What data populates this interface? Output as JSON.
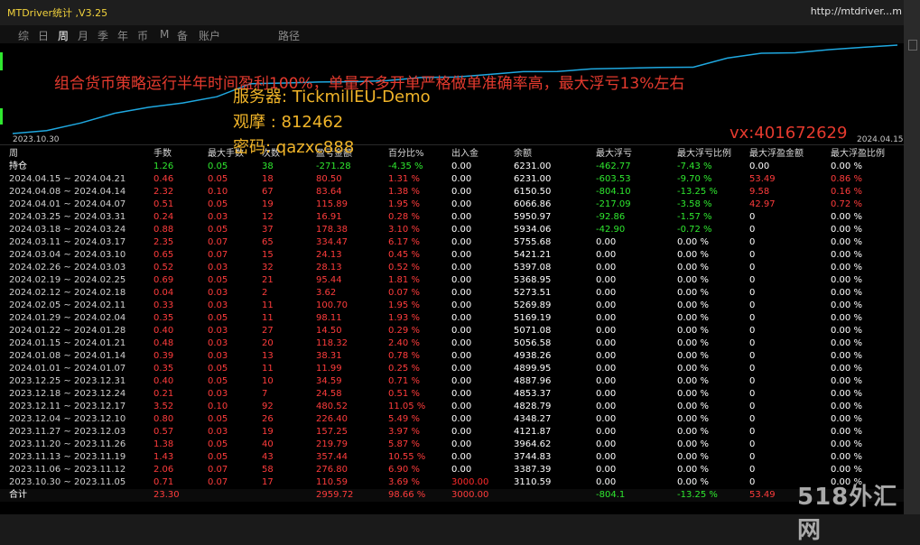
{
  "window": {
    "title": "MTDriver统计 ,V3.25",
    "url": "http://mtdriver...m"
  },
  "tabs": [
    {
      "label": "综",
      "active": false
    },
    {
      "label": "日",
      "active": false
    },
    {
      "label": "周",
      "active": true
    },
    {
      "label": "月",
      "active": false
    },
    {
      "label": "季",
      "active": false
    },
    {
      "label": "年",
      "active": false
    },
    {
      "label": "币",
      "active": false
    },
    {
      "label": "M",
      "active": false
    },
    {
      "label": "备",
      "active": false
    },
    {
      "label": "账户",
      "active": false
    },
    {
      "label": "路径",
      "active": false
    }
  ],
  "chart_data": {
    "type": "line",
    "x_start": "2023.10.30",
    "x_end": "2024.04.15",
    "series": [
      {
        "values": [
          0,
          110.59,
          387.39,
          744.83,
          964.62,
          1122.87,
          1349.27,
          1829.79,
          1854.37,
          1888.96,
          1900.95,
          1939.26,
          2057.58,
          2072.08,
          2170.19,
          2270.89,
          2274.51,
          2369.95,
          2398.08,
          2422.21,
          2435.04,
          2769.51,
          2947.85,
          2964.76,
          3080.65,
          3164.28,
          3244.78
        ],
        "color": "#1fa8e0"
      }
    ]
  },
  "overlay": {
    "headline": "组合货币策略运行半年时间盈利100%，单量不多开单严格做单准确率高，最大浮亏13%左右",
    "server": "服务器: TickmillEU-Demo",
    "watch": "观摩 : 812462",
    "password": "密码: qazxc888",
    "vx": "vx:401672629"
  },
  "table": {
    "headers": [
      "周",
      "手数",
      "最大手数",
      "次数",
      "盈亏金额",
      "百分比%",
      "出入金",
      "余额",
      "最大浮亏",
      "最大浮亏比例",
      "最大浮盈金额",
      "最大浮盈比例"
    ],
    "holding": {
      "period": "持仓",
      "lots": "1.26",
      "max_lots": "0.05",
      "count": "38",
      "pnl": "-271.28",
      "pct": "-4.35 %",
      "flow": "0.00",
      "balance": "6231.00",
      "max_float_loss": "-462.77",
      "max_float_loss_pct": "-7.43 %",
      "max_float_profit": "0.00",
      "max_float_profit_pct": "0.00 %"
    },
    "rows": [
      {
        "period": "2024.04.15 ~ 2024.04.21",
        "lots": "0.46",
        "max_lots": "0.05",
        "count": "18",
        "pnl": "80.50",
        "pct": "1.31 %",
        "flow": "0.00",
        "balance": "6231.00",
        "max_float_loss": "-603.53",
        "max_float_loss_pct": "-9.70 %",
        "max_float_profit": "53.49",
        "max_float_profit_pct": "0.86 %"
      },
      {
        "period": "2024.04.08 ~ 2024.04.14",
        "lots": "2.32",
        "max_lots": "0.10",
        "count": "67",
        "pnl": "83.64",
        "pct": "1.38 %",
        "flow": "0.00",
        "balance": "6150.50",
        "max_float_loss": "-804.10",
        "max_float_loss_pct": "-13.25 %",
        "max_float_profit": "9.58",
        "max_float_profit_pct": "0.16 %"
      },
      {
        "period": "2024.04.01 ~ 2024.04.07",
        "lots": "0.51",
        "max_lots": "0.05",
        "count": "19",
        "pnl": "115.89",
        "pct": "1.95 %",
        "flow": "0.00",
        "balance": "6066.86",
        "max_float_loss": "-217.09",
        "max_float_loss_pct": "-3.58 %",
        "max_float_profit": "42.97",
        "max_float_profit_pct": "0.72 %"
      },
      {
        "period": "2024.03.25 ~ 2024.03.31",
        "lots": "0.24",
        "max_lots": "0.03",
        "count": "12",
        "pnl": "16.91",
        "pct": "0.28 %",
        "flow": "0.00",
        "balance": "5950.97",
        "max_float_loss": "-92.86",
        "max_float_loss_pct": "-1.57 %",
        "max_float_profit": "0",
        "max_float_profit_pct": "0.00 %"
      },
      {
        "period": "2024.03.18 ~ 2024.03.24",
        "lots": "0.88",
        "max_lots": "0.05",
        "count": "37",
        "pnl": "178.38",
        "pct": "3.10 %",
        "flow": "0.00",
        "balance": "5934.06",
        "max_float_loss": "-42.90",
        "max_float_loss_pct": "-0.72 %",
        "max_float_profit": "0",
        "max_float_profit_pct": "0.00 %"
      },
      {
        "period": "2024.03.11 ~ 2024.03.17",
        "lots": "2.35",
        "max_lots": "0.07",
        "count": "65",
        "pnl": "334.47",
        "pct": "6.17 %",
        "flow": "0.00",
        "balance": "5755.68",
        "max_float_loss": "0.00",
        "max_float_loss_pct": "0.00 %",
        "max_float_profit": "0",
        "max_float_profit_pct": "0.00 %"
      },
      {
        "period": "2024.03.04 ~ 2024.03.10",
        "lots": "0.65",
        "max_lots": "0.07",
        "count": "15",
        "pnl": "24.13",
        "pct": "0.45 %",
        "flow": "0.00",
        "balance": "5421.21",
        "max_float_loss": "0.00",
        "max_float_loss_pct": "0.00 %",
        "max_float_profit": "0",
        "max_float_profit_pct": "0.00 %"
      },
      {
        "period": "2024.02.26 ~ 2024.03.03",
        "lots": "0.52",
        "max_lots": "0.03",
        "count": "32",
        "pnl": "28.13",
        "pct": "0.52 %",
        "flow": "0.00",
        "balance": "5397.08",
        "max_float_loss": "0.00",
        "max_float_loss_pct": "0.00 %",
        "max_float_profit": "0",
        "max_float_profit_pct": "0.00 %"
      },
      {
        "period": "2024.02.19 ~ 2024.02.25",
        "lots": "0.69",
        "max_lots": "0.05",
        "count": "21",
        "pnl": "95.44",
        "pct": "1.81 %",
        "flow": "0.00",
        "balance": "5368.95",
        "max_float_loss": "0.00",
        "max_float_loss_pct": "0.00 %",
        "max_float_profit": "0",
        "max_float_profit_pct": "0.00 %"
      },
      {
        "period": "2024.02.12 ~ 2024.02.18",
        "lots": "0.04",
        "max_lots": "0.03",
        "count": "2",
        "pnl": "3.62",
        "pct": "0.07 %",
        "flow": "0.00",
        "balance": "5273.51",
        "max_float_loss": "0.00",
        "max_float_loss_pct": "0.00 %",
        "max_float_profit": "0",
        "max_float_profit_pct": "0.00 %"
      },
      {
        "period": "2024.02.05 ~ 2024.02.11",
        "lots": "0.33",
        "max_lots": "0.03",
        "count": "11",
        "pnl": "100.70",
        "pct": "1.95 %",
        "flow": "0.00",
        "balance": "5269.89",
        "max_float_loss": "0.00",
        "max_float_loss_pct": "0.00 %",
        "max_float_profit": "0",
        "max_float_profit_pct": "0.00 %"
      },
      {
        "period": "2024.01.29 ~ 2024.02.04",
        "lots": "0.35",
        "max_lots": "0.05",
        "count": "11",
        "pnl": "98.11",
        "pct": "1.93 %",
        "flow": "0.00",
        "balance": "5169.19",
        "max_float_loss": "0.00",
        "max_float_loss_pct": "0.00 %",
        "max_float_profit": "0",
        "max_float_profit_pct": "0.00 %"
      },
      {
        "period": "2024.01.22 ~ 2024.01.28",
        "lots": "0.40",
        "max_lots": "0.03",
        "count": "27",
        "pnl": "14.50",
        "pct": "0.29 %",
        "flow": "0.00",
        "balance": "5071.08",
        "max_float_loss": "0.00",
        "max_float_loss_pct": "0.00 %",
        "max_float_profit": "0",
        "max_float_profit_pct": "0.00 %"
      },
      {
        "period": "2024.01.15 ~ 2024.01.21",
        "lots": "0.48",
        "max_lots": "0.03",
        "count": "20",
        "pnl": "118.32",
        "pct": "2.40 %",
        "flow": "0.00",
        "balance": "5056.58",
        "max_float_loss": "0.00",
        "max_float_loss_pct": "0.00 %",
        "max_float_profit": "0",
        "max_float_profit_pct": "0.00 %"
      },
      {
        "period": "2024.01.08 ~ 2024.01.14",
        "lots": "0.39",
        "max_lots": "0.03",
        "count": "13",
        "pnl": "38.31",
        "pct": "0.78 %",
        "flow": "0.00",
        "balance": "4938.26",
        "max_float_loss": "0.00",
        "max_float_loss_pct": "0.00 %",
        "max_float_profit": "0",
        "max_float_profit_pct": "0.00 %"
      },
      {
        "period": "2024.01.01 ~ 2024.01.07",
        "lots": "0.35",
        "max_lots": "0.05",
        "count": "11",
        "pnl": "11.99",
        "pct": "0.25 %",
        "flow": "0.00",
        "balance": "4899.95",
        "max_float_loss": "0.00",
        "max_float_loss_pct": "0.00 %",
        "max_float_profit": "0",
        "max_float_profit_pct": "0.00 %"
      },
      {
        "period": "2023.12.25 ~ 2023.12.31",
        "lots": "0.40",
        "max_lots": "0.05",
        "count": "10",
        "pnl": "34.59",
        "pct": "0.71 %",
        "flow": "0.00",
        "balance": "4887.96",
        "max_float_loss": "0.00",
        "max_float_loss_pct": "0.00 %",
        "max_float_profit": "0",
        "max_float_profit_pct": "0.00 %"
      },
      {
        "period": "2023.12.18 ~ 2023.12.24",
        "lots": "0.21",
        "max_lots": "0.03",
        "count": "7",
        "pnl": "24.58",
        "pct": "0.51 %",
        "flow": "0.00",
        "balance": "4853.37",
        "max_float_loss": "0.00",
        "max_float_loss_pct": "0.00 %",
        "max_float_profit": "0",
        "max_float_profit_pct": "0.00 %"
      },
      {
        "period": "2023.12.11 ~ 2023.12.17",
        "lots": "3.52",
        "max_lots": "0.10",
        "count": "92",
        "pnl": "480.52",
        "pct": "11.05 %",
        "flow": "0.00",
        "balance": "4828.79",
        "max_float_loss": "0.00",
        "max_float_loss_pct": "0.00 %",
        "max_float_profit": "0",
        "max_float_profit_pct": "0.00 %"
      },
      {
        "period": "2023.12.04 ~ 2023.12.10",
        "lots": "0.80",
        "max_lots": "0.05",
        "count": "26",
        "pnl": "226.40",
        "pct": "5.49 %",
        "flow": "0.00",
        "balance": "4348.27",
        "max_float_loss": "0.00",
        "max_float_loss_pct": "0.00 %",
        "max_float_profit": "0",
        "max_float_profit_pct": "0.00 %"
      },
      {
        "period": "2023.11.27 ~ 2023.12.03",
        "lots": "0.57",
        "max_lots": "0.03",
        "count": "19",
        "pnl": "157.25",
        "pct": "3.97 %",
        "flow": "0.00",
        "balance": "4121.87",
        "max_float_loss": "0.00",
        "max_float_loss_pct": "0.00 %",
        "max_float_profit": "0",
        "max_float_profit_pct": "0.00 %"
      },
      {
        "period": "2023.11.20 ~ 2023.11.26",
        "lots": "1.38",
        "max_lots": "0.05",
        "count": "40",
        "pnl": "219.79",
        "pct": "5.87 %",
        "flow": "0.00",
        "balance": "3964.62",
        "max_float_loss": "0.00",
        "max_float_loss_pct": "0.00 %",
        "max_float_profit": "0",
        "max_float_profit_pct": "0.00 %"
      },
      {
        "period": "2023.11.13 ~ 2023.11.19",
        "lots": "1.43",
        "max_lots": "0.05",
        "count": "43",
        "pnl": "357.44",
        "pct": "10.55 %",
        "flow": "0.00",
        "balance": "3744.83",
        "max_float_loss": "0.00",
        "max_float_loss_pct": "0.00 %",
        "max_float_profit": "0",
        "max_float_profit_pct": "0.00 %"
      },
      {
        "period": "2023.11.06 ~ 2023.11.12",
        "lots": "2.06",
        "max_lots": "0.07",
        "count": "58",
        "pnl": "276.80",
        "pct": "6.90 %",
        "flow": "0.00",
        "balance": "3387.39",
        "max_float_loss": "0.00",
        "max_float_loss_pct": "0.00 %",
        "max_float_profit": "0",
        "max_float_profit_pct": "0.00 %"
      },
      {
        "period": "2023.10.30 ~ 2023.11.05",
        "lots": "0.71",
        "max_lots": "0.07",
        "count": "17",
        "pnl": "110.59",
        "pct": "3.69 %",
        "flow": "3000.00",
        "balance": "3110.59",
        "max_float_loss": "0.00",
        "max_float_loss_pct": "0.00 %",
        "max_float_profit": "0",
        "max_float_profit_pct": "0.00 %"
      }
    ],
    "total": {
      "period": "合计",
      "lots": "23.30",
      "max_lots": "",
      "count": "",
      "pnl": "2959.72",
      "pct": "98.66 %",
      "flow": "3000.00",
      "balance": "",
      "max_float_loss": "-804.1",
      "max_float_loss_pct": "-13.25 %",
      "max_float_profit": "53.49",
      "max_float_profit_pct": ""
    }
  },
  "watermark": "518外汇网",
  "colors": {
    "positive": "#2fe82f",
    "negative": "#ff3c3c",
    "line": "#1fa8e0",
    "highlight": "#f0b429"
  }
}
